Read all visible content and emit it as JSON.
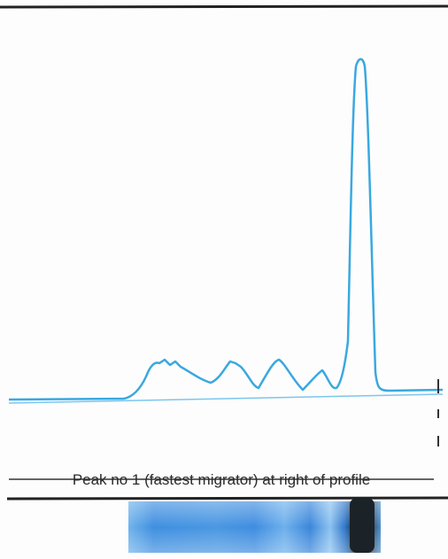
{
  "caption": "Peak no 1 (fastest migrator) at right of profile"
}
